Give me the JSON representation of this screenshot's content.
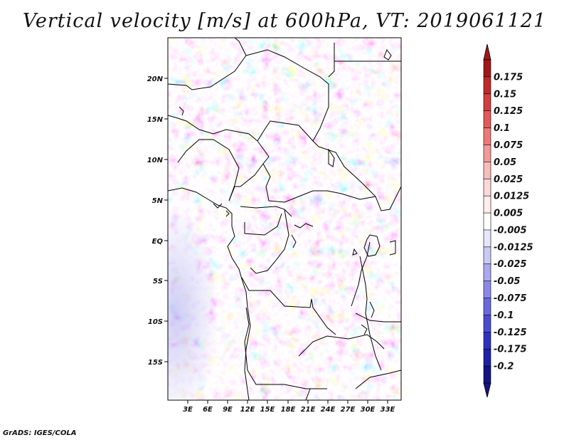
{
  "title": "Vertical velocity [m/s] at 600hPa, VT: 2019061121",
  "credit": "GrADS: IGES/COLA",
  "map": {
    "lat_labels": [
      "20N",
      "15N",
      "10N",
      "5N",
      "EQ",
      "5S",
      "10S",
      "15S"
    ],
    "lon_labels": [
      "3E",
      "6E",
      "9E",
      "12E",
      "15E",
      "18E",
      "21E",
      "24E",
      "27E",
      "30E",
      "33E"
    ]
  },
  "colorbar": {
    "labels": [
      "0.175",
      "0.15",
      "0.125",
      "0.1",
      "0.075",
      "0.05",
      "0.025",
      "0.0125",
      "0.005",
      "-0.005",
      "-0.0125",
      "-0.025",
      "-0.05",
      "-0.075",
      "-0.1",
      "-0.125",
      "-0.175",
      "-0.2"
    ],
    "colors": [
      "#a01818",
      "#be2a2a",
      "#d33e3e",
      "#e25a5a",
      "#ec7a7a",
      "#f39a9a",
      "#f8bcbc",
      "#fcd9d9",
      "#ffeeee",
      "#ffffff",
      "#e6e6fb",
      "#cacaf5",
      "#aaaaee",
      "#8a8ae6",
      "#6a6add",
      "#4b4bd0",
      "#3030bf",
      "#2020a6",
      "#141482"
    ],
    "top_arrow_color": "#a01818",
    "bottom_arrow_color": "#141482"
  }
}
